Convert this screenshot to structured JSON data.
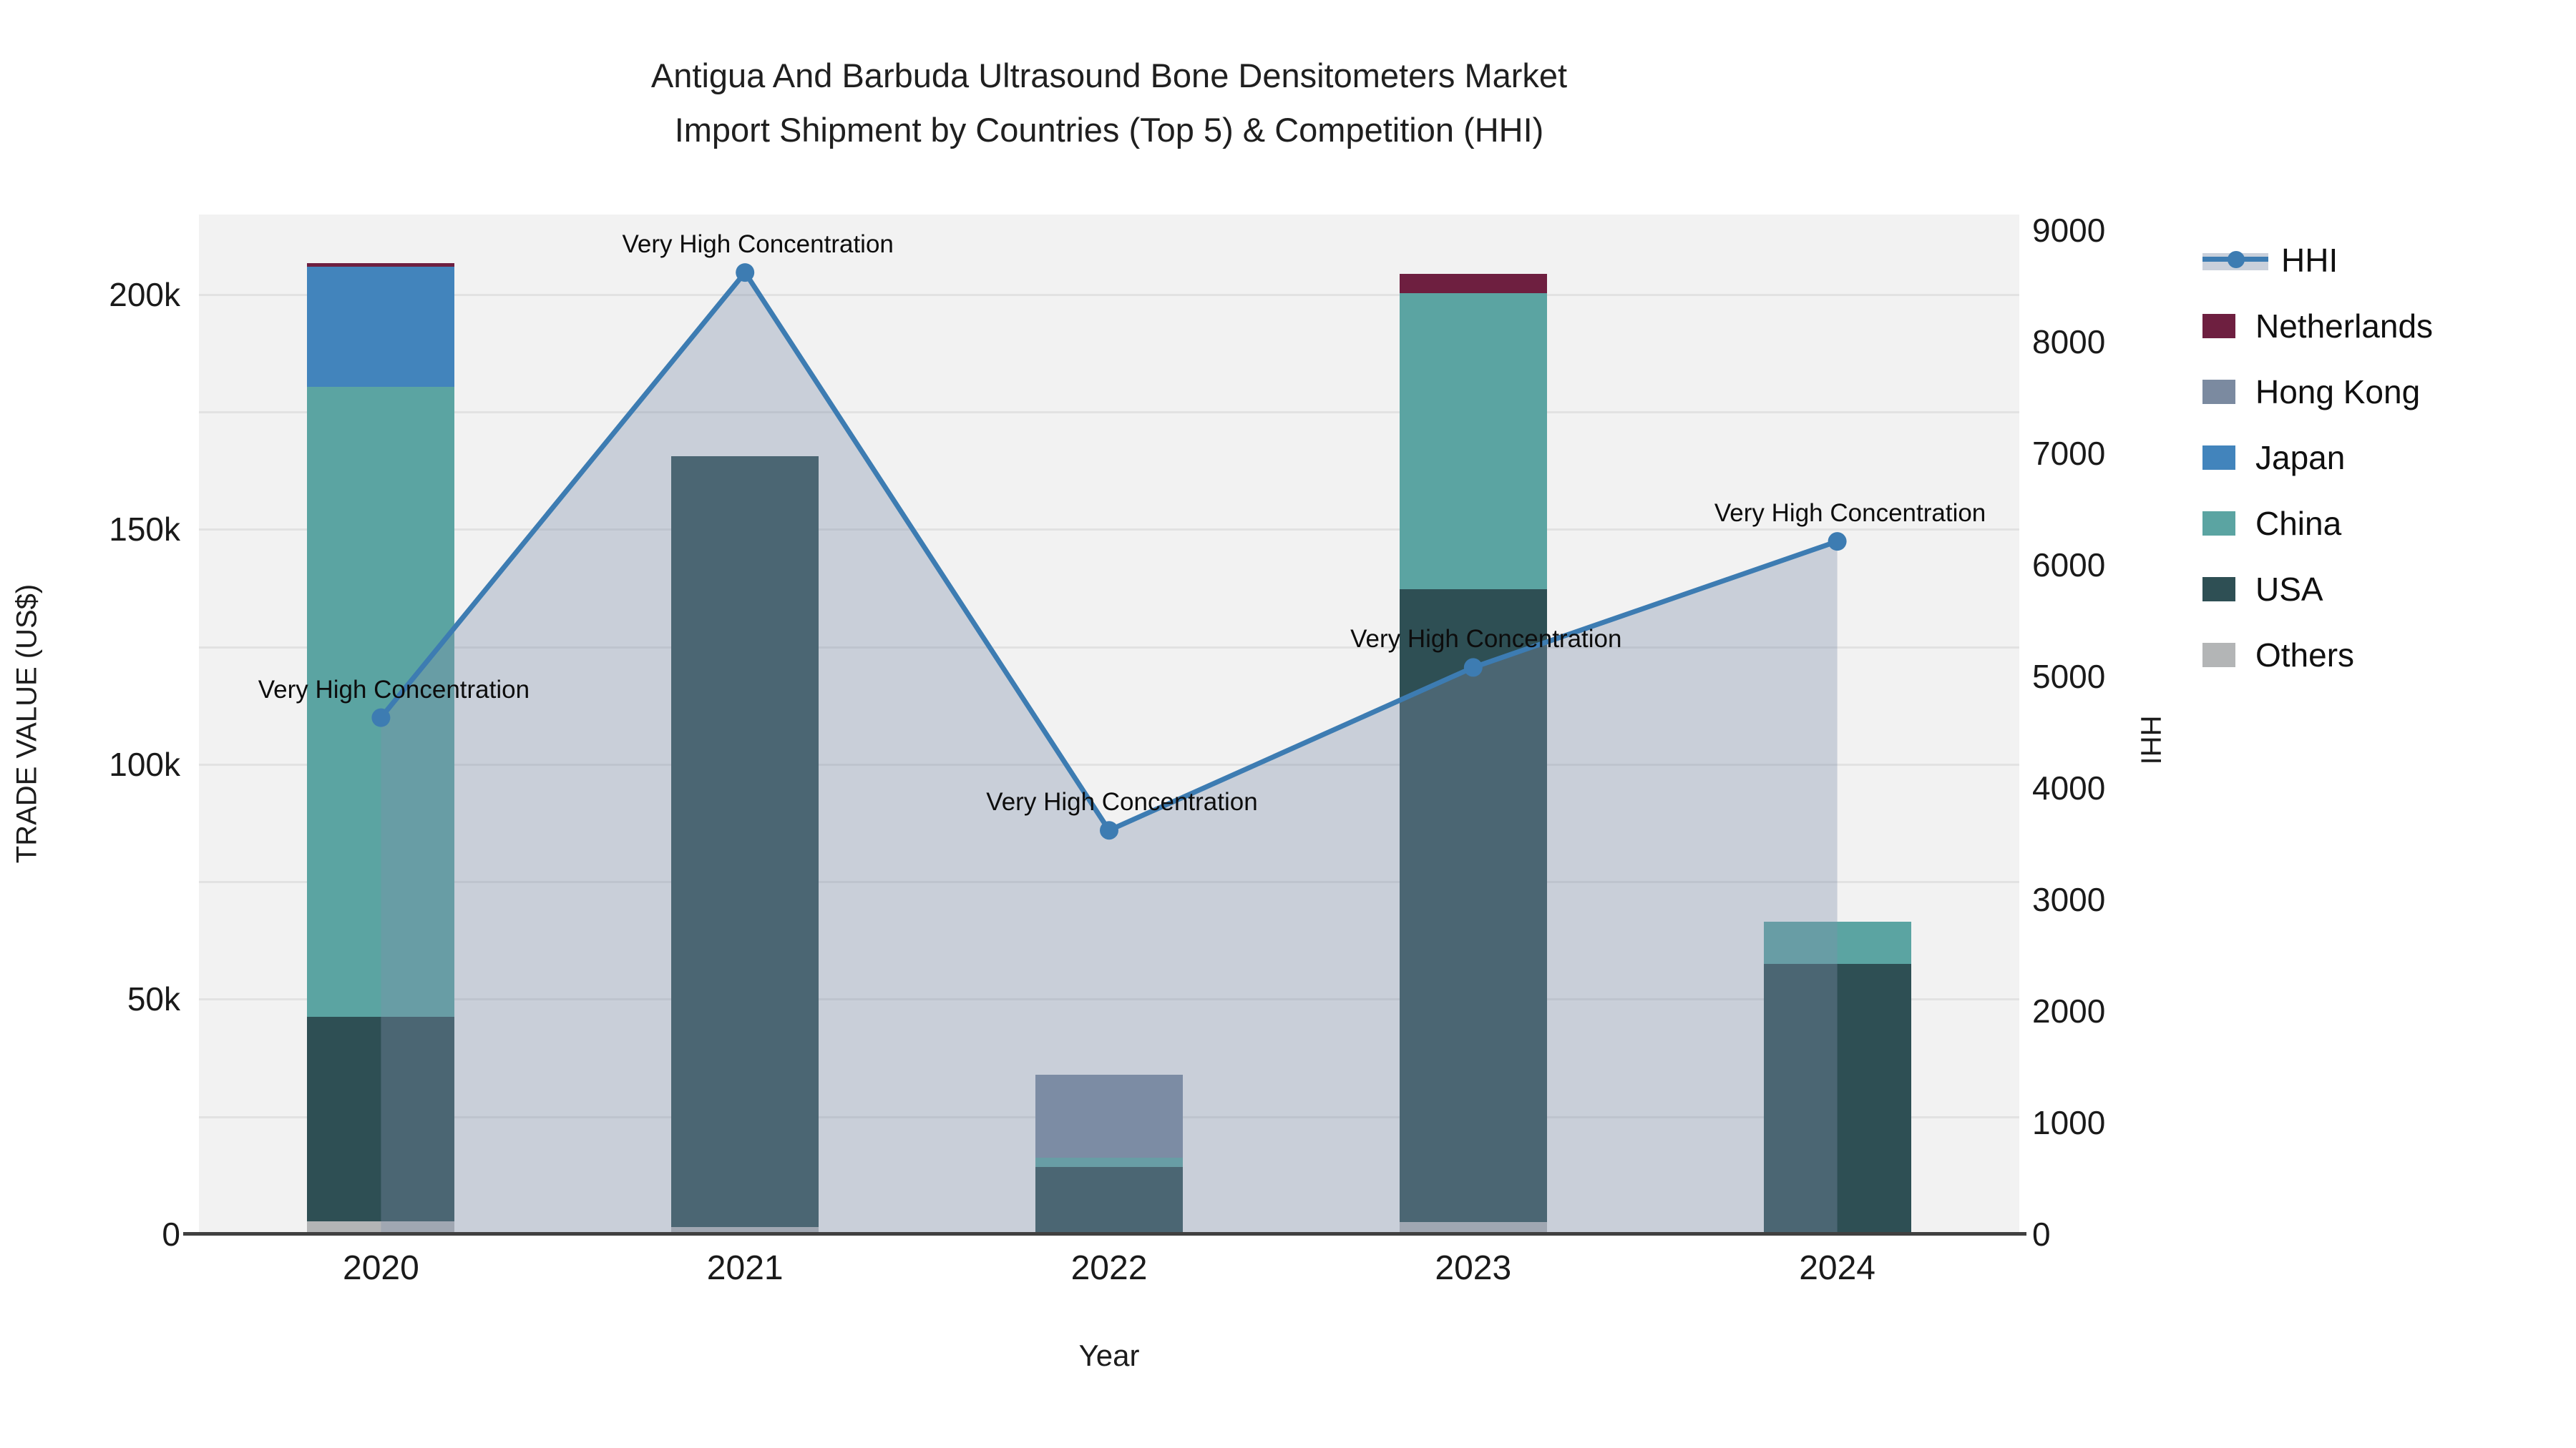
{
  "title": {
    "line1": "Antigua And Barbuda Ultrasound Bone Densitometers Market",
    "line2": "Import Shipment by Countries (Top 5) & Competition (HHI)"
  },
  "axes": {
    "left_title": "TRADE VALUE (US$)",
    "right_title": "HHI",
    "x_title": "Year"
  },
  "styles": {
    "plot_bg": "#f2f2f2",
    "grid": "#e2e2e2",
    "axis_line": "#404040",
    "page_bg": "#ffffff"
  },
  "chart_data": {
    "type": "stacked-bar+line",
    "categories": [
      "2020",
      "2021",
      "2022",
      "2023",
      "2024"
    ],
    "series": [
      {
        "name": "Others",
        "color": "#b3b5b6",
        "values": [
          2700,
          1500,
          0,
          2600,
          0
        ]
      },
      {
        "name": "USA",
        "color": "#2e4f54",
        "values": [
          43500,
          164000,
          14300,
          134700,
          57500
        ]
      },
      {
        "name": "China",
        "color": "#5ba4a2",
        "values": [
          134200,
          0,
          2000,
          63000,
          9000
        ]
      },
      {
        "name": "Japan",
        "color": "#4284bc",
        "values": [
          25500,
          0,
          0,
          0,
          0
        ]
      },
      {
        "name": "Hong Kong",
        "color": "#7b8aa0",
        "values": [
          0,
          0,
          17700,
          0,
          0
        ]
      },
      {
        "name": "Netherlands",
        "color": "#6e1f40",
        "values": [
          700,
          0,
          0,
          4100,
          0
        ]
      }
    ],
    "line_series": {
      "name": "HHI",
      "color": "#3d7cb2",
      "area_fill": "rgba(127,144,172,0.36)",
      "values": [
        4630,
        8620,
        3620,
        5080,
        6210
      ]
    },
    "annotation_labels": [
      "Very High Concentration",
      "Very High Concentration",
      "Very High Concentration",
      "Very High Concentration",
      "Very High Concentration"
    ],
    "left_axis": {
      "label": "TRADE VALUE (US$)",
      "max": 217000,
      "gridline_step": 25000,
      "ticks": [
        {
          "v": 0,
          "label": "0"
        },
        {
          "v": 50000,
          "label": "50k"
        },
        {
          "v": 100000,
          "label": "100k"
        },
        {
          "v": 150000,
          "label": "150k"
        },
        {
          "v": 200000,
          "label": "200k"
        }
      ]
    },
    "right_axis": {
      "label": "HHI",
      "max": 9140,
      "ticks": [
        {
          "v": 0,
          "label": "0"
        },
        {
          "v": 1000,
          "label": "1000"
        },
        {
          "v": 2000,
          "label": "2000"
        },
        {
          "v": 3000,
          "label": "3000"
        },
        {
          "v": 4000,
          "label": "4000"
        },
        {
          "v": 5000,
          "label": "5000"
        },
        {
          "v": 6000,
          "label": "6000"
        },
        {
          "v": 7000,
          "label": "7000"
        },
        {
          "v": 8000,
          "label": "8000"
        },
        {
          "v": 9000,
          "label": "9000"
        }
      ]
    },
    "legend_order": [
      "HHI",
      "Netherlands",
      "Hong Kong",
      "Japan",
      "China",
      "USA",
      "Others"
    ],
    "legend_position": "right"
  }
}
